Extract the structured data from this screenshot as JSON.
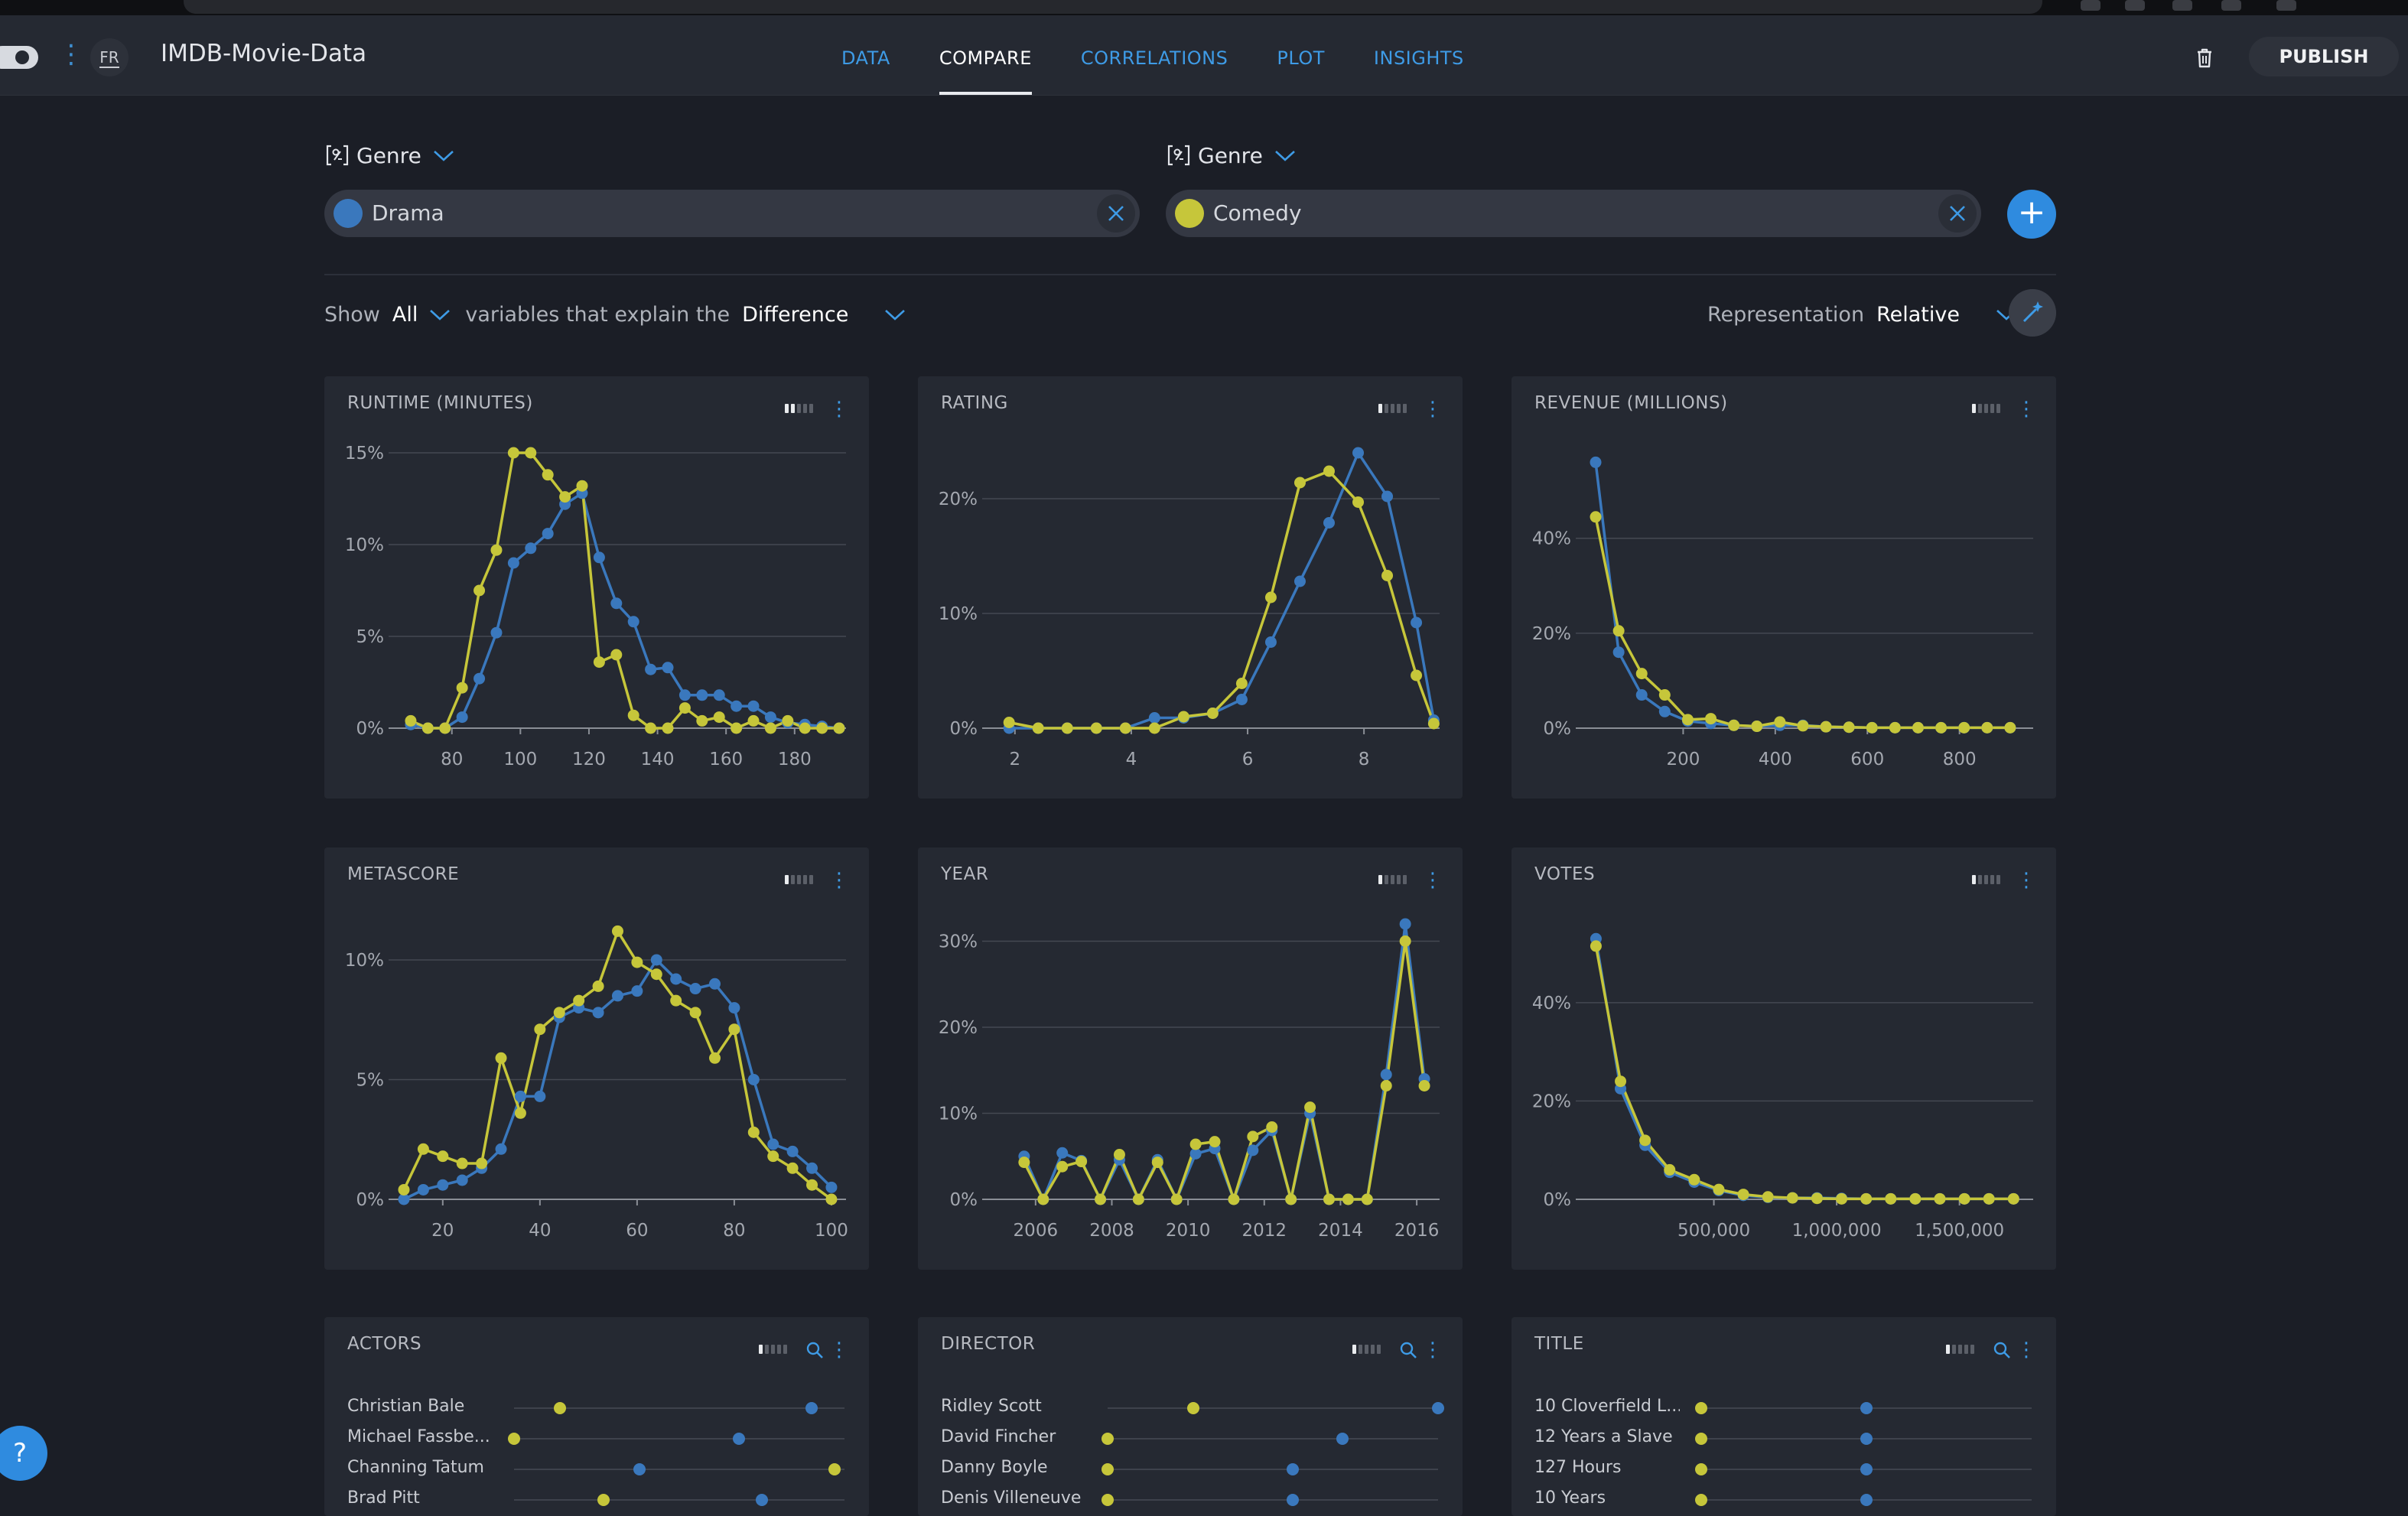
{
  "app": {
    "lang": "FR",
    "title": "IMDB-Movie-Data",
    "publish_label": "PUBLISH"
  },
  "tabs": [
    {
      "label": "DATA",
      "active": false
    },
    {
      "label": "COMPARE",
      "active": true
    },
    {
      "label": "CORRELATIONS",
      "active": false
    },
    {
      "label": "PLOT",
      "active": false
    },
    {
      "label": "INSIGHTS",
      "active": false
    }
  ],
  "compare": {
    "left": {
      "variable": "Genre",
      "value": "Drama",
      "color": "#3a78bd"
    },
    "right": {
      "variable": "Genre",
      "value": "Comedy",
      "color": "#c6c63a"
    }
  },
  "filter": {
    "show_label": "Show",
    "show_value": "All",
    "mid_label": "variables that explain the",
    "explain_value": "Difference",
    "representation_label": "Representation",
    "representation_value": "Relative"
  },
  "colors": {
    "drama": "#3a78bd",
    "comedy": "#c6c63a",
    "accent": "#2f8bdf"
  },
  "charts": [
    {
      "title": "RUNTIME (MINUTES)",
      "bars_on": 2,
      "chart_data": {
        "type": "line",
        "xlim": [
          66,
          195
        ],
        "ylim": [
          0,
          15
        ],
        "xticks": [
          80,
          100,
          120,
          140,
          160,
          180
        ],
        "yticks": [
          0,
          5,
          10,
          15
        ],
        "ytick_labels": [
          "0%",
          "5%",
          "10%",
          "15%"
        ],
        "series": [
          {
            "name": "Drama",
            "x": [
              68,
              73,
              78,
              83,
              88,
              93,
              98,
              103,
              108,
              113,
              118,
              123,
              128,
              133,
              138,
              143,
              148,
              153,
              158,
              163,
              168,
              173,
              178,
              183,
              188,
              193
            ],
            "y": [
              0.2,
              0,
              0,
              0.6,
              2.7,
              5.2,
              9.0,
              9.8,
              10.6,
              12.2,
              12.8,
              9.3,
              6.8,
              5.8,
              3.2,
              3.3,
              1.8,
              1.8,
              1.8,
              1.2,
              1.2,
              0.6,
              0.3,
              0.2,
              0.1,
              0
            ]
          },
          {
            "name": "Comedy",
            "x": [
              68,
              73,
              78,
              83,
              88,
              93,
              98,
              103,
              108,
              113,
              118,
              123,
              128,
              133,
              138,
              143,
              148,
              153,
              158,
              163,
              168,
              173,
              178,
              183,
              188,
              193
            ],
            "y": [
              0.4,
              0,
              0,
              2.2,
              7.5,
              9.7,
              15.0,
              15.0,
              13.8,
              12.6,
              13.2,
              3.6,
              4.0,
              0.7,
              0,
              0,
              1.1,
              0.4,
              0.6,
              0,
              0.4,
              0,
              0.4,
              0,
              0,
              0
            ]
          }
        ]
      }
    },
    {
      "title": "RATING",
      "bars_on": 1,
      "chart_data": {
        "type": "line",
        "xlim": [
          1.7,
          9.3
        ],
        "ylim": [
          0,
          24
        ],
        "xticks": [
          2,
          4,
          6,
          8
        ],
        "yticks": [
          0,
          10,
          20
        ],
        "ytick_labels": [
          "0%",
          "10%",
          "20%"
        ],
        "series": [
          {
            "name": "Drama",
            "x": [
              1.9,
              2.4,
              2.9,
              3.4,
              3.9,
              4.4,
              4.9,
              5.4,
              5.9,
              6.4,
              6.9,
              7.4,
              7.9,
              8.4,
              8.9,
              9.2
            ],
            "y": [
              0,
              0,
              0,
              0,
              0,
              0.9,
              0.9,
              1.3,
              2.5,
              7.5,
              12.8,
              17.9,
              24.0,
              20.2,
              9.2,
              0.7
            ]
          },
          {
            "name": "Comedy",
            "x": [
              1.9,
              2.4,
              2.9,
              3.4,
              3.9,
              4.4,
              4.9,
              5.4,
              5.9,
              6.4,
              6.9,
              7.4,
              7.9,
              8.4,
              8.9,
              9.2
            ],
            "y": [
              0.5,
              0,
              0,
              0,
              0,
              0,
              1.0,
              1.3,
              3.9,
              11.4,
              21.4,
              22.4,
              19.7,
              13.3,
              4.6,
              0.4
            ]
          }
        ]
      }
    },
    {
      "title": "REVENUE (MILLIONS)",
      "bars_on": 1,
      "chart_data": {
        "type": "line",
        "xlim": [
          0,
          960
        ],
        "ylim": [
          0,
          58
        ],
        "xticks": [
          200,
          400,
          600,
          800
        ],
        "yticks": [
          0,
          20,
          40
        ],
        "ytick_labels": [
          "0%",
          "20%",
          "40%"
        ],
        "series": [
          {
            "name": "Drama",
            "x": [
              10,
              60,
              110,
              160,
              210,
              260,
              310,
              360,
              410,
              460,
              510,
              560,
              610,
              660,
              710,
              760,
              810,
              860,
              910
            ],
            "y": [
              56.0,
              16.0,
              7.0,
              3.5,
              1.5,
              1.0,
              0.6,
              0.4,
              0.6,
              0.6,
              0.3,
              0.2,
              0.1,
              0.1,
              0.1,
              0.1,
              0.1,
              0.1,
              0.1
            ]
          },
          {
            "name": "Comedy",
            "x": [
              10,
              60,
              110,
              160,
              210,
              260,
              310,
              360,
              410,
              460,
              510,
              560,
              610,
              660,
              710,
              760,
              810,
              860,
              910
            ],
            "y": [
              44.5,
              20.5,
              11.5,
              7.0,
              1.8,
              2.0,
              0.6,
              0.4,
              1.3,
              0.5,
              0.3,
              0.2,
              0.1,
              0.1,
              0.1,
              0.1,
              0.1,
              0.1,
              0.1
            ]
          }
        ]
      }
    },
    {
      "title": "METASCORE",
      "bars_on": 1,
      "chart_data": {
        "type": "line",
        "xlim": [
          12,
          103
        ],
        "ylim": [
          0,
          11.5
        ],
        "xticks": [
          20,
          40,
          60,
          80,
          100
        ],
        "yticks": [
          0,
          5,
          10
        ],
        "ytick_labels": [
          "0%",
          "5%",
          "10%"
        ],
        "series": [
          {
            "name": "Drama",
            "x": [
              12,
              16,
              20,
              24,
              28,
              32,
              36,
              40,
              44,
              48,
              52,
              56,
              60,
              64,
              68,
              72,
              76,
              80,
              84,
              88,
              92,
              96,
              100
            ],
            "y": [
              0,
              0.4,
              0.6,
              0.8,
              1.3,
              2.1,
              4.3,
              4.3,
              7.6,
              8.0,
              7.8,
              8.5,
              8.7,
              10.0,
              9.2,
              8.8,
              9.0,
              8.0,
              5.0,
              2.3,
              2.0,
              1.3,
              0.5
            ]
          },
          {
            "name": "Comedy",
            "x": [
              12,
              16,
              20,
              24,
              28,
              32,
              36,
              40,
              44,
              48,
              52,
              56,
              60,
              64,
              68,
              72,
              76,
              80,
              84,
              88,
              92,
              96,
              100
            ],
            "y": [
              0.4,
              2.1,
              1.8,
              1.5,
              1.5,
              5.9,
              3.6,
              7.1,
              7.8,
              8.3,
              8.9,
              11.2,
              9.9,
              9.4,
              8.3,
              7.8,
              5.9,
              7.1,
              2.8,
              1.8,
              1.3,
              0.6,
              0
            ]
          }
        ]
      }
    },
    {
      "title": "YEAR",
      "bars_on": 1,
      "chart_data": {
        "type": "line",
        "xlim": [
          2005,
          2016.6
        ],
        "ylim": [
          0,
          32
        ],
        "xticks": [
          2006,
          2008,
          2010,
          2012,
          2014,
          2016
        ],
        "xtick_labels": [
          "2006",
          "2008",
          "2010",
          "2012",
          "2014",
          "2016"
        ],
        "yticks": [
          0,
          10,
          20,
          30
        ],
        "ytick_labels": [
          "0%",
          "10%",
          "20%",
          "30%"
        ],
        "series": [
          {
            "name": "Drama",
            "x": [
              2005.7,
              2006.2,
              2006.7,
              2007.2,
              2007.7,
              2008.2,
              2008.7,
              2009.2,
              2009.7,
              2010.2,
              2010.7,
              2011.2,
              2011.7,
              2012.2,
              2012.7,
              2013.2,
              2013.7,
              2014.2,
              2014.7,
              2015.2,
              2015.7,
              2016.2
            ],
            "y": [
              5.0,
              0,
              5.4,
              4.5,
              0,
              4.6,
              0,
              4.6,
              0,
              5.3,
              5.9,
              0,
              5.7,
              8.0,
              0,
              10.0,
              0,
              0,
              0,
              14.5,
              32.0,
              14.0
            ]
          },
          {
            "name": "Comedy",
            "x": [
              2005.7,
              2006.2,
              2006.7,
              2007.2,
              2007.7,
              2008.2,
              2008.7,
              2009.2,
              2009.7,
              2010.2,
              2010.7,
              2011.2,
              2011.7,
              2012.2,
              2012.7,
              2013.2,
              2013.7,
              2014.2,
              2014.7,
              2015.2,
              2015.7,
              2016.2
            ],
            "y": [
              4.3,
              0,
              3.8,
              4.4,
              0,
              5.2,
              0,
              4.3,
              0,
              6.4,
              6.7,
              0,
              7.3,
              8.4,
              0,
              10.7,
              0,
              0,
              0,
              13.2,
              30.0,
              13.2
            ]
          }
        ]
      }
    },
    {
      "title": "VOTES",
      "bars_on": 1,
      "chart_data": {
        "type": "line",
        "xlim": [
          0,
          1800000
        ],
        "ylim": [
          0,
          56
        ],
        "xticks": [
          500000,
          1000000,
          1500000
        ],
        "xtick_labels": [
          "500,000",
          "1,000,000",
          "1,500,000"
        ],
        "yticks": [
          0,
          20,
          40
        ],
        "ytick_labels": [
          "0%",
          "20%",
          "40%"
        ],
        "series": [
          {
            "name": "Drama",
            "x": [
              20000,
              120000,
              220000,
              320000,
              420000,
              520000,
              620000,
              720000,
              820000,
              920000,
              1020000,
              1120000,
              1220000,
              1320000,
              1420000,
              1520000,
              1620000,
              1720000
            ],
            "y": [
              53.0,
              22.5,
              11.0,
              5.5,
              3.5,
              1.8,
              0.8,
              0.4,
              0.3,
              0.3,
              0.2,
              0.1,
              0.1,
              0.1,
              0.1,
              0.1,
              0.1,
              0.1
            ]
          },
          {
            "name": "Comedy",
            "x": [
              20000,
              120000,
              220000,
              320000,
              420000,
              520000,
              620000,
              720000,
              820000,
              920000,
              1020000,
              1120000,
              1220000,
              1320000,
              1420000,
              1520000,
              1620000,
              1720000
            ],
            "y": [
              51.5,
              24.0,
              12.0,
              6.0,
              4.0,
              2.0,
              1.0,
              0.5,
              0.3,
              0.2,
              0.1,
              0.1,
              0.1,
              0.1,
              0.1,
              0.1,
              0.1,
              0.1
            ]
          }
        ]
      }
    }
  ],
  "rank_cards": [
    {
      "title": "ACTORS",
      "bars_on": 1,
      "rows": [
        {
          "label": "Christian Bale",
          "comedy": 0.14,
          "drama": 0.9
        },
        {
          "label": "Michael Fassbe...",
          "comedy": 0.0,
          "drama": 0.68
        },
        {
          "label": "Channing Tatum",
          "comedy": 0.97,
          "drama": 0.38
        },
        {
          "label": "Brad Pitt",
          "comedy": 0.27,
          "drama": 0.75
        }
      ]
    },
    {
      "title": "DIRECTOR",
      "bars_on": 1,
      "rows": [
        {
          "label": "Ridley Scott",
          "comedy": 0.26,
          "drama": 1.0
        },
        {
          "label": "David Fincher",
          "comedy": 0.0,
          "drama": 0.71
        },
        {
          "label": "Danny Boyle",
          "comedy": 0.0,
          "drama": 0.56
        },
        {
          "label": "Denis Villeneuve",
          "comedy": 0.0,
          "drama": 0.56
        }
      ]
    },
    {
      "title": "TITLE",
      "bars_on": 1,
      "rows": [
        {
          "label": "10 Cloverfield L...",
          "comedy": 0.0,
          "drama": 0.5
        },
        {
          "label": "12 Years a Slave",
          "comedy": 0.0,
          "drama": 0.5
        },
        {
          "label": "127 Hours",
          "comedy": 0.0,
          "drama": 0.5
        },
        {
          "label": "10 Years",
          "comedy": 0.0,
          "drama": 0.5
        }
      ]
    }
  ],
  "help_label": "?"
}
